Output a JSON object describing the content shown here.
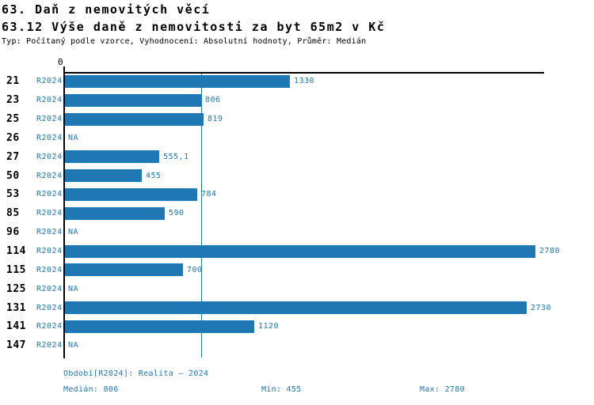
{
  "header": {
    "title": "63. Daň z nemovitých věcí",
    "subtitle": "63.12 Výše daně z nemovitosti za byt 65m2 v Kč",
    "meta": "Typ: Počítaný podle vzorce, Vyhodnocení: Absolutní hodnoty, Průměr: Medián"
  },
  "chart_data": {
    "type": "bar",
    "orientation": "horizontal",
    "title": "63.12 Výše daně z nemovitosti za byt 65m2 v Kč",
    "axis_zero_label": "0",
    "period_label": "R2024",
    "na_label": "NA",
    "categories": [
      "21",
      "23",
      "25",
      "26",
      "27",
      "50",
      "53",
      "85",
      "96",
      "114",
      "115",
      "125",
      "131",
      "141",
      "147"
    ],
    "values": [
      1330,
      806,
      819,
      null,
      555.1,
      455,
      784,
      590,
      null,
      2780,
      700,
      null,
      2730,
      1120,
      null
    ],
    "value_labels": [
      "1330",
      "806",
      "819",
      "NA",
      "555,1",
      "455",
      "784",
      "590",
      "NA",
      "2780",
      "700",
      "NA",
      "2730",
      "1120",
      "NA"
    ],
    "xlim": [
      0,
      2840
    ],
    "median_value": 806,
    "grid": "median-line-only",
    "legend": "none",
    "bar_color": "#1f77b4",
    "label_color": "#1f77b4",
    "axis_color": "#000000",
    "median_line_color": "#1f77b4"
  },
  "footer": {
    "period": "Období[R2024]: Realita – 2024",
    "median": "Medián: 806",
    "min": "Min: 455",
    "max": "Max: 2780"
  }
}
